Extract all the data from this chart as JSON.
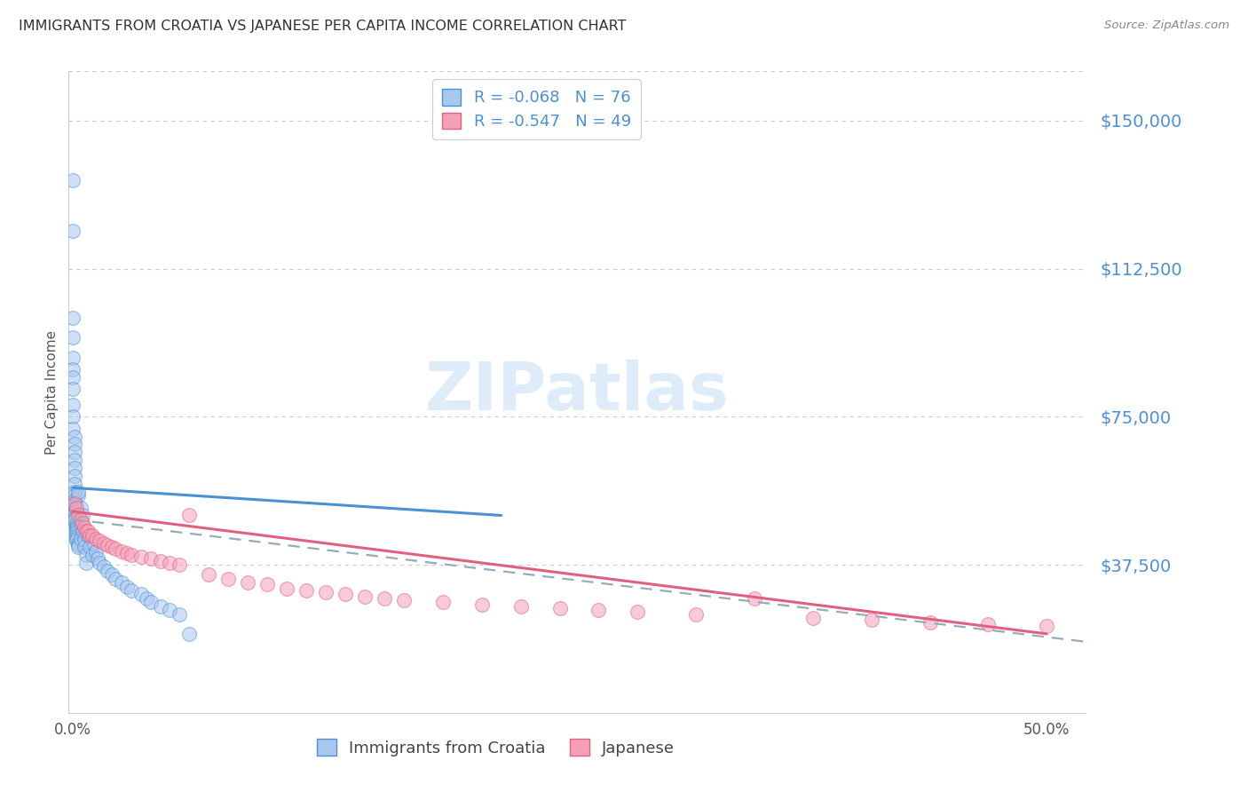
{
  "title": "IMMIGRANTS FROM CROATIA VS JAPANESE PER CAPITA INCOME CORRELATION CHART",
  "source": "Source: ZipAtlas.com",
  "ylabel": "Per Capita Income",
  "ytick_labels": [
    "$37,500",
    "$75,000",
    "$112,500",
    "$150,000"
  ],
  "ytick_values": [
    37500,
    75000,
    112500,
    150000
  ],
  "ymin": 0,
  "ymax": 162500,
  "xmin": -0.002,
  "xmax": 0.52,
  "background_color": "#ffffff",
  "grid_color": "#cccccc",
  "title_color": "#333333",
  "right_tick_color": "#4C90D4",
  "scatter_blue_color": "#A8C8F0",
  "scatter_pink_color": "#F5A0B8",
  "line_blue_color": "#4C90D4",
  "line_pink_color": "#E06080",
  "line_dashed_color": "#99AABB",
  "croatia_R": -0.068,
  "croatia_N": 76,
  "japanese_R": -0.547,
  "japanese_N": 49,
  "croatia_x": [
    0.0,
    0.0,
    0.0,
    0.0,
    0.0,
    0.0,
    0.0,
    0.0,
    0.0,
    0.0,
    0.0,
    0.001,
    0.001,
    0.001,
    0.001,
    0.001,
    0.001,
    0.001,
    0.001,
    0.001,
    0.001,
    0.001,
    0.001,
    0.001,
    0.001,
    0.001,
    0.001,
    0.001,
    0.001,
    0.001,
    0.001,
    0.002,
    0.002,
    0.002,
    0.002,
    0.002,
    0.002,
    0.002,
    0.002,
    0.002,
    0.002,
    0.003,
    0.003,
    0.003,
    0.003,
    0.003,
    0.004,
    0.004,
    0.004,
    0.005,
    0.005,
    0.006,
    0.006,
    0.007,
    0.007,
    0.008,
    0.009,
    0.01,
    0.011,
    0.012,
    0.013,
    0.014,
    0.016,
    0.018,
    0.02,
    0.022,
    0.025,
    0.028,
    0.03,
    0.035,
    0.038,
    0.04,
    0.045,
    0.05,
    0.055,
    0.06
  ],
  "croatia_y": [
    135000,
    122000,
    100000,
    95000,
    90000,
    87000,
    85000,
    82000,
    78000,
    75000,
    72000,
    70000,
    68000,
    66000,
    64000,
    62000,
    60000,
    58000,
    56000,
    55000,
    54000,
    53000,
    52500,
    52000,
    51500,
    51000,
    50500,
    50000,
    49500,
    49000,
    48500,
    48000,
    47500,
    47000,
    46500,
    46000,
    45500,
    45000,
    44500,
    44000,
    43500,
    43000,
    42500,
    42000,
    55000,
    56000,
    52000,
    48000,
    44000,
    50000,
    46000,
    44000,
    42000,
    40000,
    38000,
    45000,
    42000,
    40000,
    43000,
    41000,
    39000,
    38000,
    37000,
    36000,
    35000,
    34000,
    33000,
    32000,
    31000,
    30000,
    29000,
    28000,
    27000,
    26000,
    25000,
    20000
  ],
  "japanese_x": [
    0.001,
    0.002,
    0.003,
    0.004,
    0.005,
    0.006,
    0.007,
    0.008,
    0.009,
    0.01,
    0.012,
    0.014,
    0.016,
    0.018,
    0.02,
    0.022,
    0.025,
    0.028,
    0.03,
    0.035,
    0.04,
    0.045,
    0.05,
    0.055,
    0.06,
    0.07,
    0.08,
    0.09,
    0.1,
    0.11,
    0.12,
    0.13,
    0.14,
    0.15,
    0.16,
    0.17,
    0.19,
    0.21,
    0.23,
    0.25,
    0.27,
    0.29,
    0.32,
    0.35,
    0.38,
    0.41,
    0.44,
    0.47,
    0.5
  ],
  "japanese_y": [
    53000,
    52000,
    50000,
    49000,
    48000,
    47000,
    46000,
    46000,
    45000,
    45000,
    44000,
    43500,
    43000,
    42500,
    42000,
    41500,
    41000,
    40500,
    40000,
    39500,
    39000,
    38500,
    38000,
    37500,
    50000,
    35000,
    34000,
    33000,
    32500,
    31500,
    31000,
    30500,
    30000,
    29500,
    29000,
    28500,
    28000,
    27500,
    27000,
    26500,
    26000,
    25500,
    25000,
    29000,
    24000,
    23500,
    23000,
    22500,
    22000
  ],
  "croatia_line_x": [
    0.0,
    0.22
  ],
  "croatia_line_y": [
    57000,
    50000
  ],
  "japanese_line_x": [
    0.0,
    0.5
  ],
  "japanese_line_y": [
    51000,
    20000
  ],
  "dash_line_x": [
    0.0,
    0.52
  ],
  "dash_line_y": [
    49000,
    18000
  ]
}
